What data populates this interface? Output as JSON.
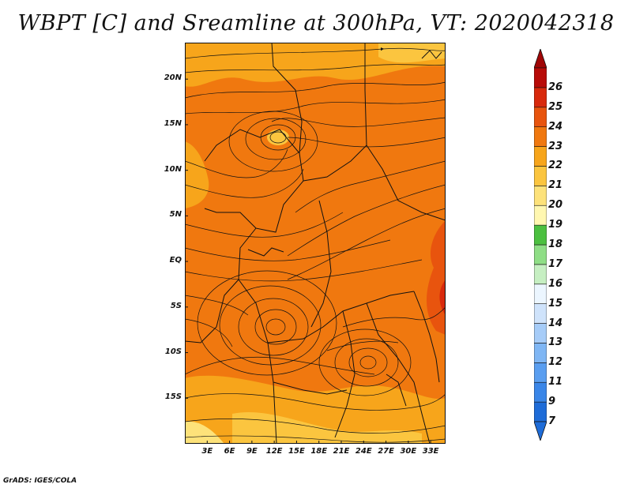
{
  "title": "WBPT [C] and Sreamline at 300hPa, VT: 2020042318",
  "credit": "GrADS: IGES/COLA",
  "map": {
    "lon_range": [
      0,
      35
    ],
    "lat_range": [
      -20,
      24
    ],
    "lat_ticks": [
      {
        "lat": 20,
        "label": "20N"
      },
      {
        "lat": 15,
        "label": "15N"
      },
      {
        "lat": 10,
        "label": "10N"
      },
      {
        "lat": 5,
        "label": "5N"
      },
      {
        "lat": 0,
        "label": "EQ"
      },
      {
        "lat": -5,
        "label": "5S"
      },
      {
        "lat": -10,
        "label": "10S"
      },
      {
        "lat": -15,
        "label": "15S"
      }
    ],
    "lon_ticks": [
      {
        "lon": 3,
        "label": "3E"
      },
      {
        "lon": 6,
        "label": "6E"
      },
      {
        "lon": 9,
        "label": "9E"
      },
      {
        "lon": 12,
        "label": "12E"
      },
      {
        "lon": 15,
        "label": "15E"
      },
      {
        "lon": 18,
        "label": "18E"
      },
      {
        "lon": 21,
        "label": "21E"
      },
      {
        "lon": 24,
        "label": "24E"
      },
      {
        "lon": 27,
        "label": "27E"
      },
      {
        "lon": 30,
        "label": "30E"
      },
      {
        "lon": 33,
        "label": "33E"
      }
    ],
    "vortices": [
      {
        "name": "vortex-northwest",
        "lon": 13,
        "lat": 15
      },
      {
        "name": "vortex-central",
        "lon": 12,
        "lat": -7
      },
      {
        "name": "vortex-southeast",
        "lon": 25,
        "lat": -11
      }
    ]
  },
  "colorbar": {
    "levels": [
      "7",
      "9",
      "11",
      "12",
      "13",
      "14",
      "15",
      "16",
      "17",
      "18",
      "19",
      "20",
      "21",
      "22",
      "23",
      "24",
      "25",
      "26"
    ],
    "colors": [
      "#1e6cd8",
      "#3a86e8",
      "#5a9ef0",
      "#7fb6f4",
      "#a6ccf8",
      "#cfe3fb",
      "#ecf6ff",
      "#c6efc2",
      "#8fde86",
      "#4cc040",
      "#fff7b0",
      "#fde27a",
      "#fbc53f",
      "#f7a51b",
      "#f0780f",
      "#e8540e",
      "#d8290c",
      "#b80b08"
    ],
    "under_color": "#1e6cd8",
    "over_color": "#a00606"
  },
  "colors": {
    "background_main": "#f0780f",
    "field_warm": "#f7a51b",
    "field_hot": "#e8540e",
    "field_light": "#fde27a",
    "streamline": "#111111",
    "border": "#111111"
  }
}
